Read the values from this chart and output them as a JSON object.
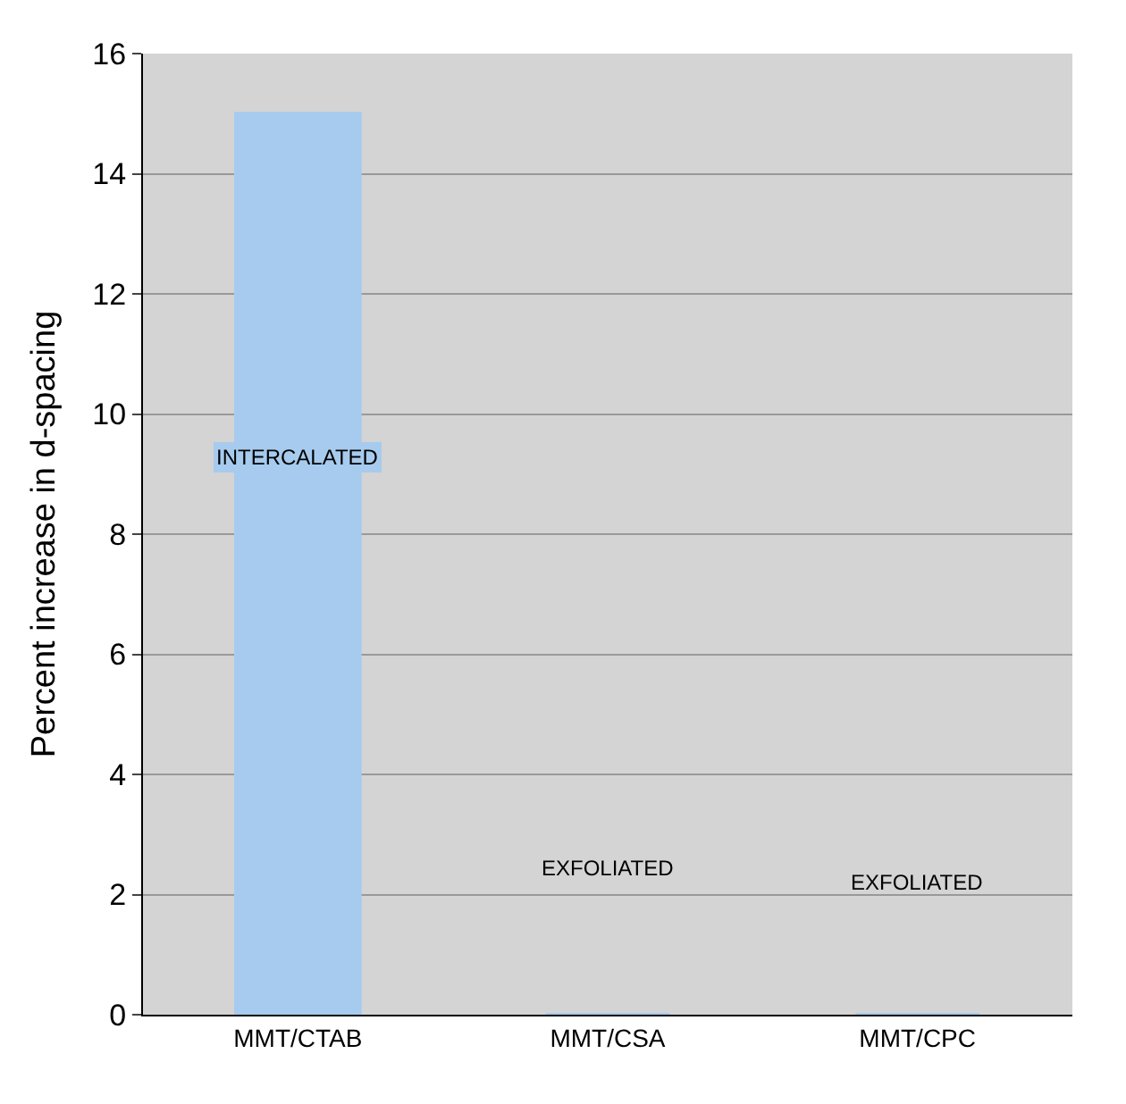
{
  "chart_data": {
    "type": "bar",
    "ylabel": "Percent increase in d-spacing",
    "categories": [
      "MMT/CTAB",
      "MMT/CSA",
      "MMT/CPC"
    ],
    "values": [
      15,
      0,
      0
    ],
    "color": "#a6cbee",
    "ylim": [
      0,
      16
    ],
    "yticks": [
      0,
      2,
      4,
      6,
      8,
      10,
      12,
      14,
      16
    ],
    "grid": "y",
    "annotations": [
      "INTERCALATED",
      "EXFOLIATED",
      "EXFOLIATED"
    ]
  }
}
